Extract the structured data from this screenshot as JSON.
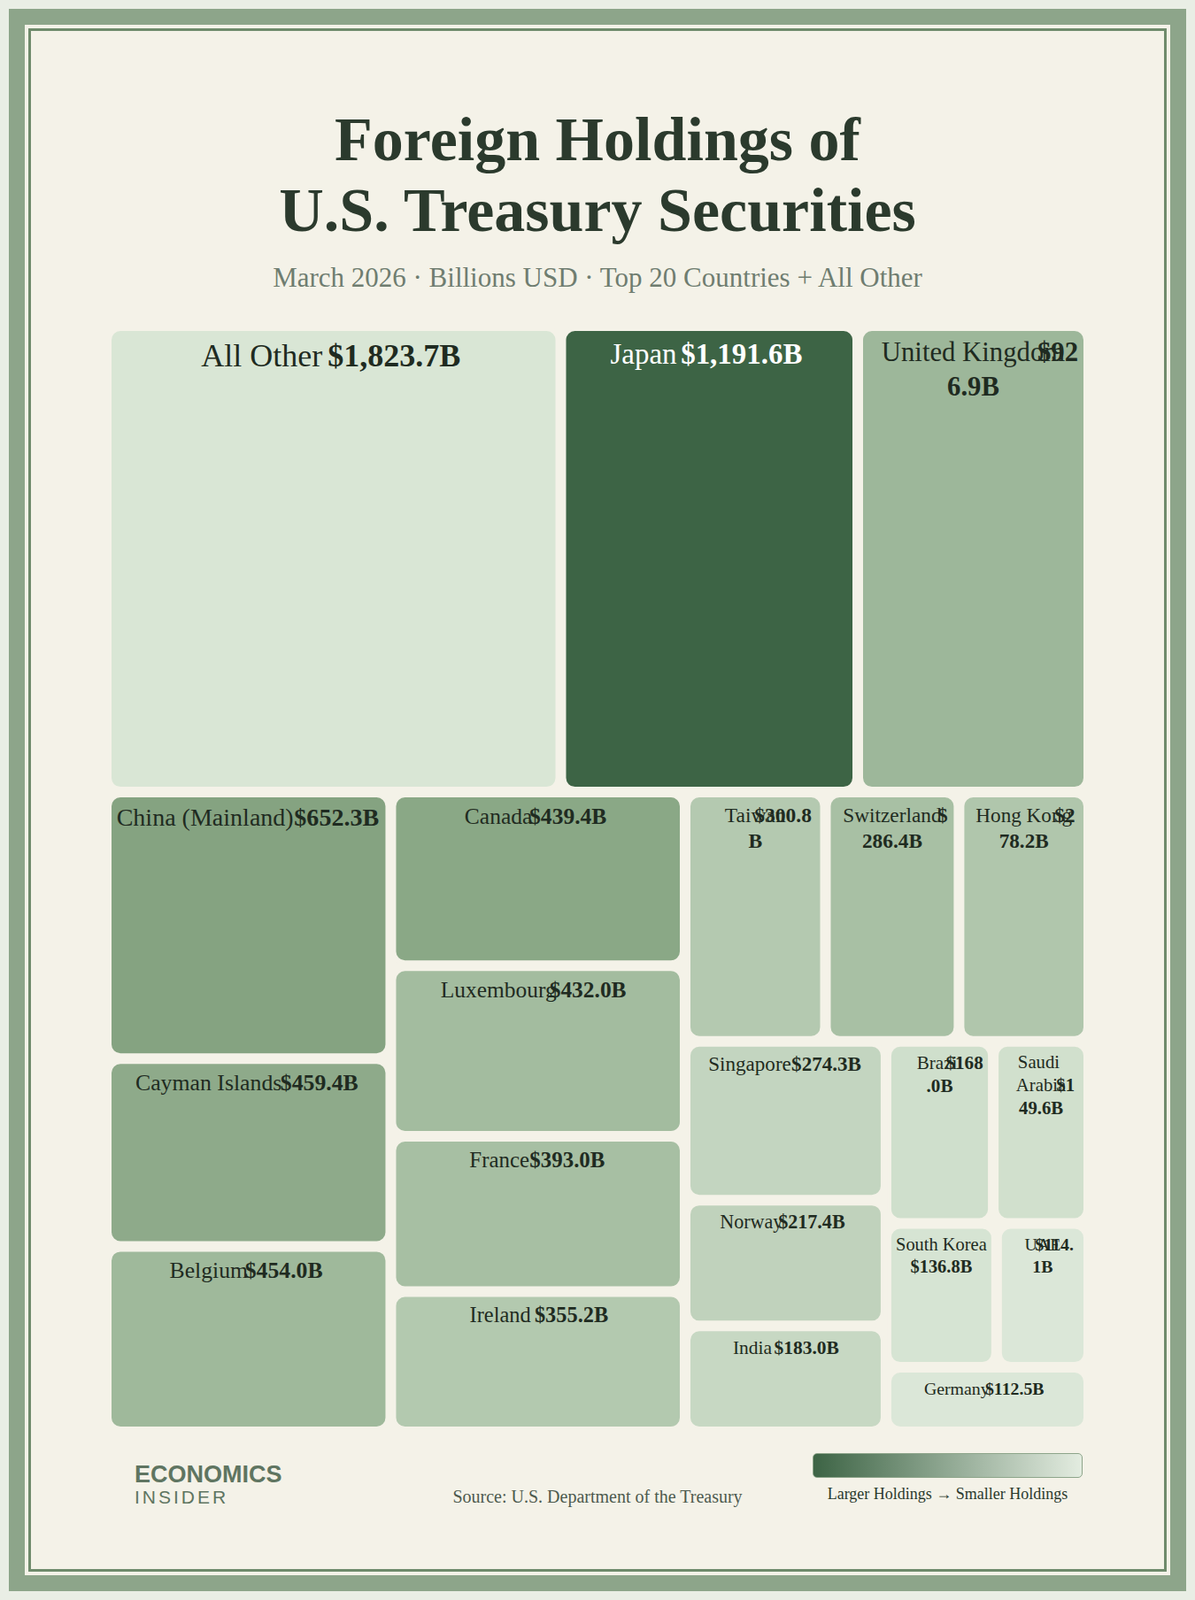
{
  "chart_data": {
    "type": "treemap",
    "title": "Foreign Holdings of\nU.S. Treasury Securities",
    "subtitle": "March 2026 · Billions USD · Top 20 Countries + All Other",
    "categories": [
      "Japan",
      "United Kingdom",
      "Cayman Islands",
      "Belgium",
      "Canada",
      "Luxembourg",
      "France",
      "Ireland",
      "China (Mainland)",
      "Taiwan",
      "Switzerland",
      "Hong Kong",
      "Singapore",
      "India",
      "Norway",
      "Brazil",
      "Saudi Arabia",
      "South Korea",
      "UAE",
      "Germany",
      "All Other"
    ],
    "values": [
      1191.6,
      926.9,
      459.4,
      454.0,
      439.4,
      432.0,
      393.0,
      355.2,
      652.3,
      300.8,
      286.4,
      278.2,
      274.3,
      183.0,
      217.4,
      168.0,
      149.6,
      136.8,
      114.1,
      112.5,
      1823.7
    ],
    "value_labels": [
      "$1,191.6B",
      "$926.9B",
      "$459.4B",
      "$454.0B",
      "$439.4B",
      "$432.0B",
      "$393.0B",
      "$355.2B",
      "$652.3B",
      "$300.8B",
      "$286.4B",
      "$278.2B",
      "$274.3B",
      "$183.0B",
      "$217.4B",
      "$168.0B",
      "$149.6B",
      "$136.8B",
      "$114.1B",
      "$112.5B",
      "$1,823.7B"
    ],
    "colors": [
      "#3d6445",
      "#9db79a",
      "#8eaa8a",
      "#9fb99b",
      "#8aa886",
      "#a3bc9f",
      "#a7bfa3",
      "#b3c9af",
      "#85a381",
      "#b4c9b0",
      "#a8c0a4",
      "#b0c6ac",
      "#c3d5c0",
      "#c7d8c3",
      "#c0d2bc",
      "#cfdfcc",
      "#d1e0cd",
      "#d6e4d3",
      "#dbe7d8",
      "#dbe7d8",
      "#d9e6d5"
    ],
    "data_labels": true,
    "source": "Source: U.S. Department of the Treasury",
    "color_scale_label": "Larger Holdings → Smaller Holdings",
    "brand": [
      "ECONOMICS",
      "INSIDER"
    ]
  }
}
